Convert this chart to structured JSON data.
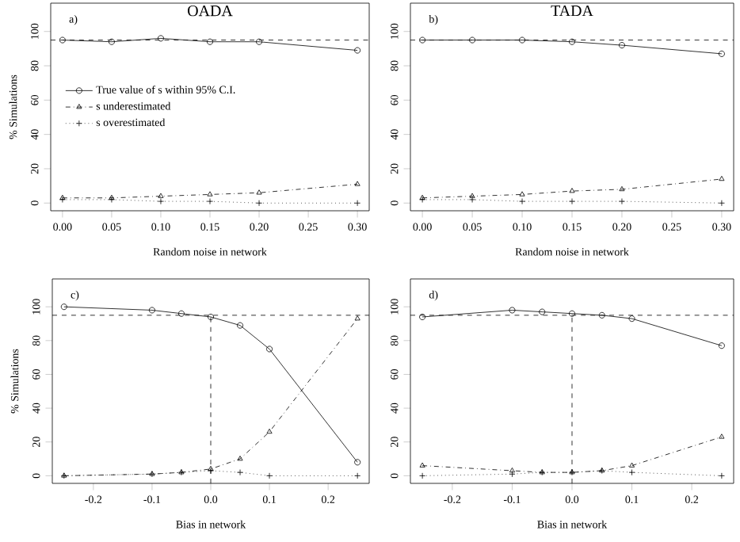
{
  "chart_data": [
    {
      "type": "line",
      "title": "OADA",
      "xlabel": "Random noise in network",
      "ylabel": "% Simulations",
      "annotations": [
        "a)"
      ],
      "x": [
        0,
        0.05,
        0.1,
        0.15,
        0.2,
        0.3
      ],
      "xlim": [
        -0.012,
        0.312
      ],
      "ylim": [
        -4.5,
        116.5
      ],
      "xticks": [
        {
          "value": 0,
          "label": "0.00"
        },
        0.05,
        {
          "value": 0.1,
          "label": "0.10"
        },
        0.15,
        {
          "value": 0.2,
          "label": "0.20"
        },
        0.25,
        {
          "value": 0.3,
          "label": "0.30"
        }
      ],
      "yticks": [
        0,
        20,
        40,
        60,
        80,
        100
      ],
      "legend": "left",
      "ref_lines": [
        {
          "axis": "y",
          "value": 95,
          "line_style": "dashed"
        }
      ],
      "series": [
        {
          "name": "True value of s within 95% C.I.",
          "color": "#000000",
          "marker": "circle",
          "line_style": "solid",
          "values": [
            95,
            94,
            96,
            94,
            94,
            89
          ]
        },
        {
          "name": "s underestimated",
          "color": "#000000",
          "marker": "triangle",
          "line_style": "dashdot",
          "values": [
            3,
            3,
            4,
            5,
            6,
            11
          ]
        },
        {
          "name": "s overestimated",
          "color": "#000000",
          "marker": "cross",
          "line_style": "dotted",
          "values": [
            2,
            2,
            1,
            1,
            0,
            0
          ]
        }
      ]
    },
    {
      "type": "line",
      "title": "TADA",
      "xlabel": "Random noise in network",
      "annotations": [
        "b)"
      ],
      "x": [
        0,
        0.05,
        0.1,
        0.15,
        0.2,
        0.3
      ],
      "xlim": [
        -0.012,
        0.312
      ],
      "ylim": [
        -4.5,
        116.5
      ],
      "xticks": [
        {
          "value": 0,
          "label": "0.00"
        },
        0.05,
        {
          "value": 0.1,
          "label": "0.10"
        },
        0.15,
        {
          "value": 0.2,
          "label": "0.20"
        },
        0.25,
        {
          "value": 0.3,
          "label": "0.30"
        }
      ],
      "yticks": [
        0,
        20,
        40,
        60,
        80,
        100
      ],
      "ref_lines": [
        {
          "axis": "y",
          "value": 95,
          "line_style": "dashed"
        }
      ],
      "series": [
        {
          "color": "#000000",
          "marker": "circle",
          "line_style": "solid",
          "values": [
            95,
            95,
            95,
            94,
            92,
            87
          ]
        },
        {
          "color": "#000000",
          "marker": "triangle",
          "line_style": "dashdot",
          "values": [
            3,
            4,
            5,
            7,
            8,
            14
          ]
        },
        {
          "color": "#000000",
          "marker": "cross",
          "line_style": "dotted",
          "values": [
            2,
            2,
            1,
            1,
            1,
            0
          ]
        }
      ]
    },
    {
      "type": "line",
      "xlabel": "Bias in network",
      "ylabel": "% Simulations",
      "annotations": [
        "c)"
      ],
      "x": [
        -0.25,
        -0.1,
        -0.05,
        0,
        0.05,
        0.1,
        0.25
      ],
      "xlim": [
        -0.27,
        0.27
      ],
      "ylim": [
        -4.5,
        116.5
      ],
      "xticks": [
        -0.2,
        -0.1,
        {
          "value": 0,
          "label": "0.0"
        },
        0.1,
        0.2
      ],
      "yticks": [
        0,
        20,
        40,
        60,
        80,
        100
      ],
      "ref_lines": [
        {
          "axis": "y",
          "value": 95,
          "line_style": "dashed"
        },
        {
          "axis": "x",
          "value": 0,
          "line_style": "dashed"
        }
      ],
      "series": [
        {
          "color": "#000000",
          "marker": "circle",
          "line_style": "solid",
          "values": [
            100,
            98,
            96,
            94,
            89,
            75,
            8
          ]
        },
        {
          "color": "#000000",
          "marker": "triangle",
          "line_style": "dashdot",
          "values": [
            0,
            1,
            2,
            4,
            10,
            26,
            93
          ]
        },
        {
          "color": "#000000",
          "marker": "cross",
          "line_style": "dotted",
          "values": [
            0,
            1,
            2,
            3,
            2,
            0,
            0
          ]
        }
      ]
    },
    {
      "type": "line",
      "xlabel": "Bias in network",
      "annotations": [
        "d)"
      ],
      "x": [
        -0.25,
        -0.1,
        -0.05,
        0,
        0.05,
        0.1,
        0.25
      ],
      "xlim": [
        -0.27,
        0.27
      ],
      "ylim": [
        -4.5,
        116.5
      ],
      "xticks": [
        -0.2,
        -0.1,
        {
          "value": 0,
          "label": "0.0"
        },
        0.1,
        0.2
      ],
      "yticks": [
        0,
        20,
        40,
        60,
        80,
        100
      ],
      "ref_lines": [
        {
          "axis": "y",
          "value": 95,
          "line_style": "dashed"
        },
        {
          "axis": "x",
          "value": 0,
          "line_style": "dashed"
        }
      ],
      "series": [
        {
          "color": "#000000",
          "marker": "circle",
          "line_style": "solid",
          "values": [
            94,
            98,
            97,
            96,
            95,
            93,
            77
          ]
        },
        {
          "color": "#000000",
          "marker": "triangle",
          "line_style": "dashdot",
          "values": [
            6,
            3,
            2,
            2,
            3,
            6,
            23
          ]
        },
        {
          "color": "#000000",
          "marker": "cross",
          "line_style": "dotted",
          "values": [
            0,
            1,
            2,
            2,
            3,
            2,
            0
          ]
        }
      ]
    }
  ]
}
